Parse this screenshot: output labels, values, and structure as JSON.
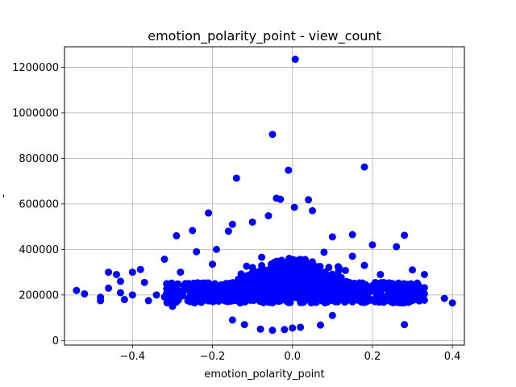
{
  "chart_data": {
    "type": "scatter",
    "title": "emotion_polarity_point - view_count",
    "xlabel": "emotion_polarity_point",
    "ylabel": "-",
    "xlim": [
      -0.57,
      0.43
    ],
    "ylim": [
      -20000,
      1290000
    ],
    "xticks": [
      -0.4,
      -0.2,
      0.0,
      0.2,
      0.4
    ],
    "xtick_labels": [
      "−0.4",
      "−0.2",
      "0.0",
      "0.2",
      "0.4"
    ],
    "yticks": [
      0,
      200000,
      400000,
      600000,
      800000,
      1000000,
      1200000
    ],
    "ytick_labels": [
      "0",
      "200000",
      "400000",
      "600000",
      "800000",
      "1000000",
      "1200000"
    ],
    "grid": true,
    "marker_color": "#0000ff",
    "series": [
      {
        "points": [
          [
            0.007,
            1235000
          ],
          [
            -0.05,
            905000
          ],
          [
            -0.01,
            748000
          ],
          [
            0.18,
            762000
          ],
          [
            -0.14,
            713000
          ],
          [
            -0.04,
            625000
          ],
          [
            -0.03,
            620000
          ],
          [
            0.04,
            618000
          ],
          [
            0.005,
            585000
          ],
          [
            -0.21,
            560000
          ],
          [
            0.05,
            570000
          ],
          [
            -0.06,
            548000
          ],
          [
            -0.15,
            510000
          ],
          [
            -0.1,
            520000
          ],
          [
            -0.16,
            480000
          ],
          [
            -0.29,
            460000
          ],
          [
            -0.25,
            483000
          ],
          [
            0.26,
            412000
          ],
          [
            0.28,
            462000
          ],
          [
            -0.19,
            400000
          ],
          [
            -0.2,
            335000
          ],
          [
            -0.46,
            300000
          ],
          [
            -0.4,
            300000
          ],
          [
            -0.38,
            312000
          ],
          [
            -0.44,
            290000
          ],
          [
            -0.32,
            357000
          ],
          [
            -0.24,
            390000
          ],
          [
            0.15,
            465000
          ],
          [
            0.2,
            420000
          ],
          [
            0.1,
            455000
          ],
          [
            -0.54,
            220000
          ],
          [
            -0.52,
            205000
          ],
          [
            -0.48,
            190000
          ],
          [
            -0.48,
            175000
          ],
          [
            -0.46,
            230000
          ],
          [
            -0.43,
            260000
          ],
          [
            -0.43,
            210000
          ],
          [
            -0.42,
            180000
          ],
          [
            -0.4,
            200000
          ],
          [
            -0.37,
            255000
          ],
          [
            -0.36,
            175000
          ],
          [
            -0.34,
            200000
          ],
          [
            0.4,
            165000
          ],
          [
            0.38,
            185000
          ],
          [
            0.33,
            290000
          ],
          [
            0.33,
            232000
          ],
          [
            0.33,
            205000
          ],
          [
            0.33,
            177000
          ],
          [
            0.3,
            310000
          ],
          [
            0.29,
            225000
          ],
          [
            0.28,
            70000
          ],
          [
            0.3,
            180000
          ],
          [
            0.27,
            200000
          ],
          [
            0.25,
            250000
          ],
          [
            -0.08,
            50000
          ],
          [
            -0.05,
            45000
          ],
          [
            -0.02,
            48000
          ],
          [
            0.0,
            55000
          ],
          [
            0.02,
            58000
          ],
          [
            0.07,
            68000
          ],
          [
            -0.12,
            70000
          ],
          [
            -0.15,
            90000
          ],
          [
            0.1,
            110000
          ],
          [
            -0.28,
            300000
          ],
          [
            -0.26,
            250000
          ],
          [
            0.22,
            290000
          ],
          [
            0.24,
            215000
          ],
          [
            0.18,
            330000
          ],
          [
            0.15,
            370000
          ],
          [
            -0.3,
            150000
          ]
        ]
      }
    ]
  }
}
